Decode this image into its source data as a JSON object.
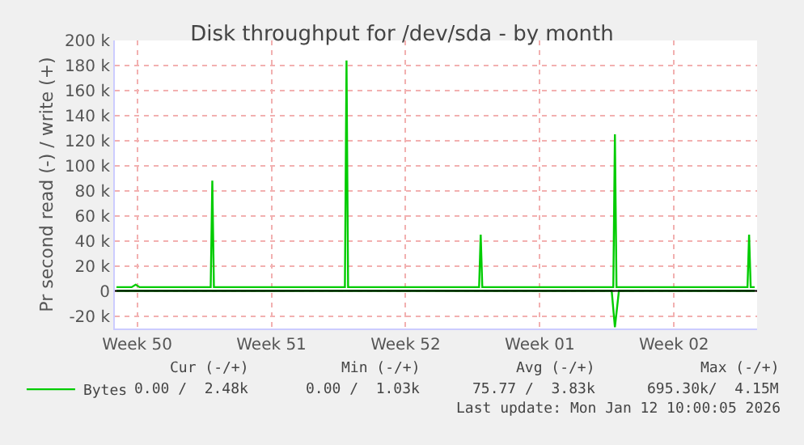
{
  "chart_data": {
    "type": "line",
    "title": "Disk throughput for /dev/sda - by month",
    "ylabel": "Pr second read (-) / write (+)",
    "xlim": [
      "2025-12-10T02:00",
      "2026-01-12T14:00"
    ],
    "xticks": [
      {
        "value": "2025-12-11T06:00",
        "label": "Week 50"
      },
      {
        "value": "2025-12-18T06:00",
        "label": "Week 51"
      },
      {
        "value": "2025-12-25T06:00",
        "label": "Week 52"
      },
      {
        "value": "2026-01-01T06:00",
        "label": "Week 01"
      },
      {
        "value": "2026-01-08T06:00",
        "label": "Week 02"
      }
    ],
    "ylim": [
      -30000,
      200000
    ],
    "yticks": [
      {
        "value": -20000,
        "label": "-20 k"
      },
      {
        "value": 0,
        "label": "0"
      },
      {
        "value": 20000,
        "label": "20 k"
      },
      {
        "value": 40000,
        "label": "40 k"
      },
      {
        "value": 60000,
        "label": "60 k"
      },
      {
        "value": 80000,
        "label": "80 k"
      },
      {
        "value": 100000,
        "label": "100 k"
      },
      {
        "value": 120000,
        "label": "120 k"
      },
      {
        "value": 140000,
        "label": "140 k"
      },
      {
        "value": 160000,
        "label": "160 k"
      },
      {
        "value": 180000,
        "label": "180 k"
      },
      {
        "value": 200000,
        "label": "200 k"
      }
    ],
    "grid": true,
    "legend": "bottom left",
    "marker": "none",
    "line_style": "solid",
    "ref_lines": [
      {
        "axis": "y",
        "value": 0,
        "color": "#000000"
      }
    ],
    "series": [
      {
        "name": "Bytes",
        "color": "#00cc00",
        "x": [
          "2025-12-10T04:00",
          "2025-12-10T23:00",
          "2025-12-11T04:00",
          "2025-12-11T09:00",
          "2025-12-14T21:00",
          "2025-12-15T02:00",
          "2025-12-15T04:00",
          "2025-12-15T06:00",
          "2025-12-15T11:00",
          "2025-12-21T21:00",
          "2025-12-22T02:00",
          "2025-12-22T04:00",
          "2025-12-22T06:00",
          "2025-12-22T11:00",
          "2025-12-28T21:00",
          "2025-12-29T02:00",
          "2025-12-29T04:00",
          "2025-12-29T06:00",
          "2025-12-29T11:00",
          "2026-01-04T21:00",
          "2026-01-05T02:00",
          "2026-01-05T04:00",
          "2026-01-05T06:00",
          "2026-01-05T11:00",
          "2026-01-11T21:00",
          "2026-01-12T02:00",
          "2026-01-12T04:00",
          "2026-01-12T06:00",
          "2026-01-12T11:00"
        ],
        "values": [
          3000,
          3000,
          5000,
          3000,
          3000,
          3000,
          88000,
          3000,
          3000,
          3000,
          3000,
          184000,
          3000,
          3000,
          3000,
          3000,
          45000,
          3000,
          3000,
          3000,
          3000,
          125000,
          3000,
          3000,
          3000,
          3000,
          45000,
          3000,
          3000
        ]
      },
      {
        "color": "#00cc00",
        "x": [
          "2025-12-10T04:00",
          "2026-01-05T00:00",
          "2026-01-05T04:00",
          "2026-01-05T09:00",
          "2026-01-12T11:00"
        ],
        "values": [
          0,
          0,
          -29000,
          0,
          0
        ]
      }
    ],
    "annotations": [
      "Cur (-/+)",
      "Min (-/+)",
      "Avg (-/+)",
      "Max (-/+)",
      "0.00 /  2.48k",
      "0.00 /  1.03k",
      "75.77 /  3.83k",
      "695.30k/  4.15M",
      "Last update: Mon Jan 12 10:00:05 2026"
    ]
  }
}
